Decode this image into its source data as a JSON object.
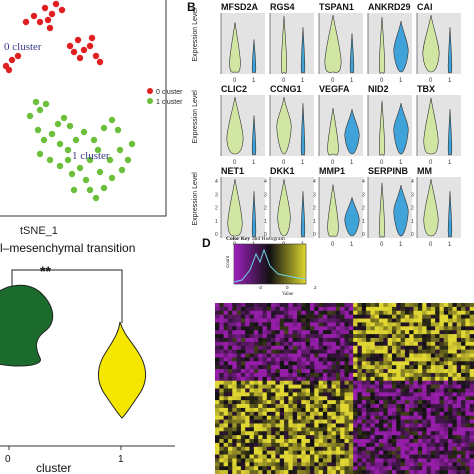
{
  "panelA": {
    "xlabel": "tSNE_1",
    "cluster0_label": "0 cluster",
    "cluster1_label": "1 cluster",
    "legend": [
      {
        "label": "0 cluster",
        "color": "#e02020"
      },
      {
        "label": "1 cluster",
        "color": "#6cbf3a"
      }
    ]
  },
  "panelB": {
    "letter": "B",
    "ylabel": "Expression Level",
    "rows": [
      {
        "genes": [
          "MFSD2A",
          "RGS4",
          "TSPAN1",
          "ANKRD29",
          "CAI"
        ]
      },
      {
        "genes": [
          "CLIC2",
          "CCNG1",
          "VEGFA",
          "NID2",
          "TBX"
        ]
      },
      {
        "genes": [
          "NET1",
          "DKK1",
          "MMP1",
          "SERPINB",
          "MM"
        ]
      }
    ],
    "row3_yticks": [
      "0",
      "1",
      "2",
      "3",
      "4"
    ],
    "xticks": [
      "0",
      "1"
    ],
    "colors": {
      "cluster0": "#d2e6a4",
      "cluster1": "#3fa2d8",
      "panel_bg": "#e3e3e3"
    }
  },
  "panelC": {
    "title": "l–mesenchymal transition",
    "significance": "**",
    "xlabel": "cluster",
    "xticks": [
      "0",
      "1"
    ],
    "colors": {
      "cluster0": "#1a6b2c",
      "cluster1": "#f5e600"
    }
  },
  "panelD": {
    "letter": "D",
    "key_title": "Color Key",
    "key_subtitle": "and Histogram",
    "key_ylabel": "Count",
    "key_xlabel": "Value",
    "key_ticks": [
      "-2",
      "0",
      "2"
    ],
    "colors": {
      "low": "#8b1a9a",
      "mid": "#111111",
      "high": "#d8d02a"
    }
  }
}
